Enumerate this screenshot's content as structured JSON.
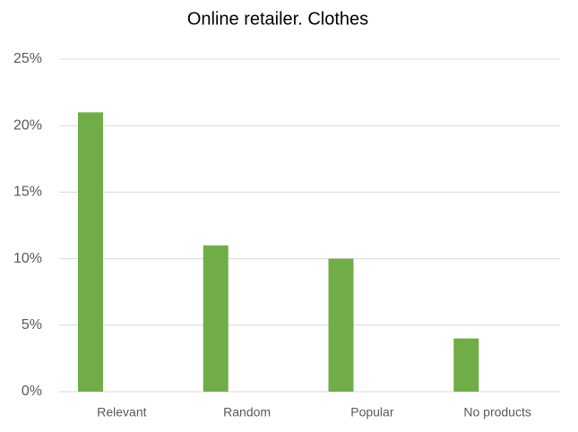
{
  "chart_data": {
    "type": "bar",
    "title": "Online retailer. Clothes",
    "categories": [
      "Relevant",
      "Random",
      "Popular",
      "No products"
    ],
    "values": [
      21,
      11,
      10,
      4
    ],
    "color": "#70ad47",
    "ylim": [
      0,
      25
    ],
    "yticks": [
      {
        "value": 0,
        "label": "0%"
      },
      {
        "value": 5,
        "label": "5%"
      },
      {
        "value": 10,
        "label": "10%"
      },
      {
        "value": 15,
        "label": "15%"
      },
      {
        "value": 20,
        "label": "20%"
      },
      {
        "value": 25,
        "label": "25%"
      }
    ],
    "grid": true
  }
}
